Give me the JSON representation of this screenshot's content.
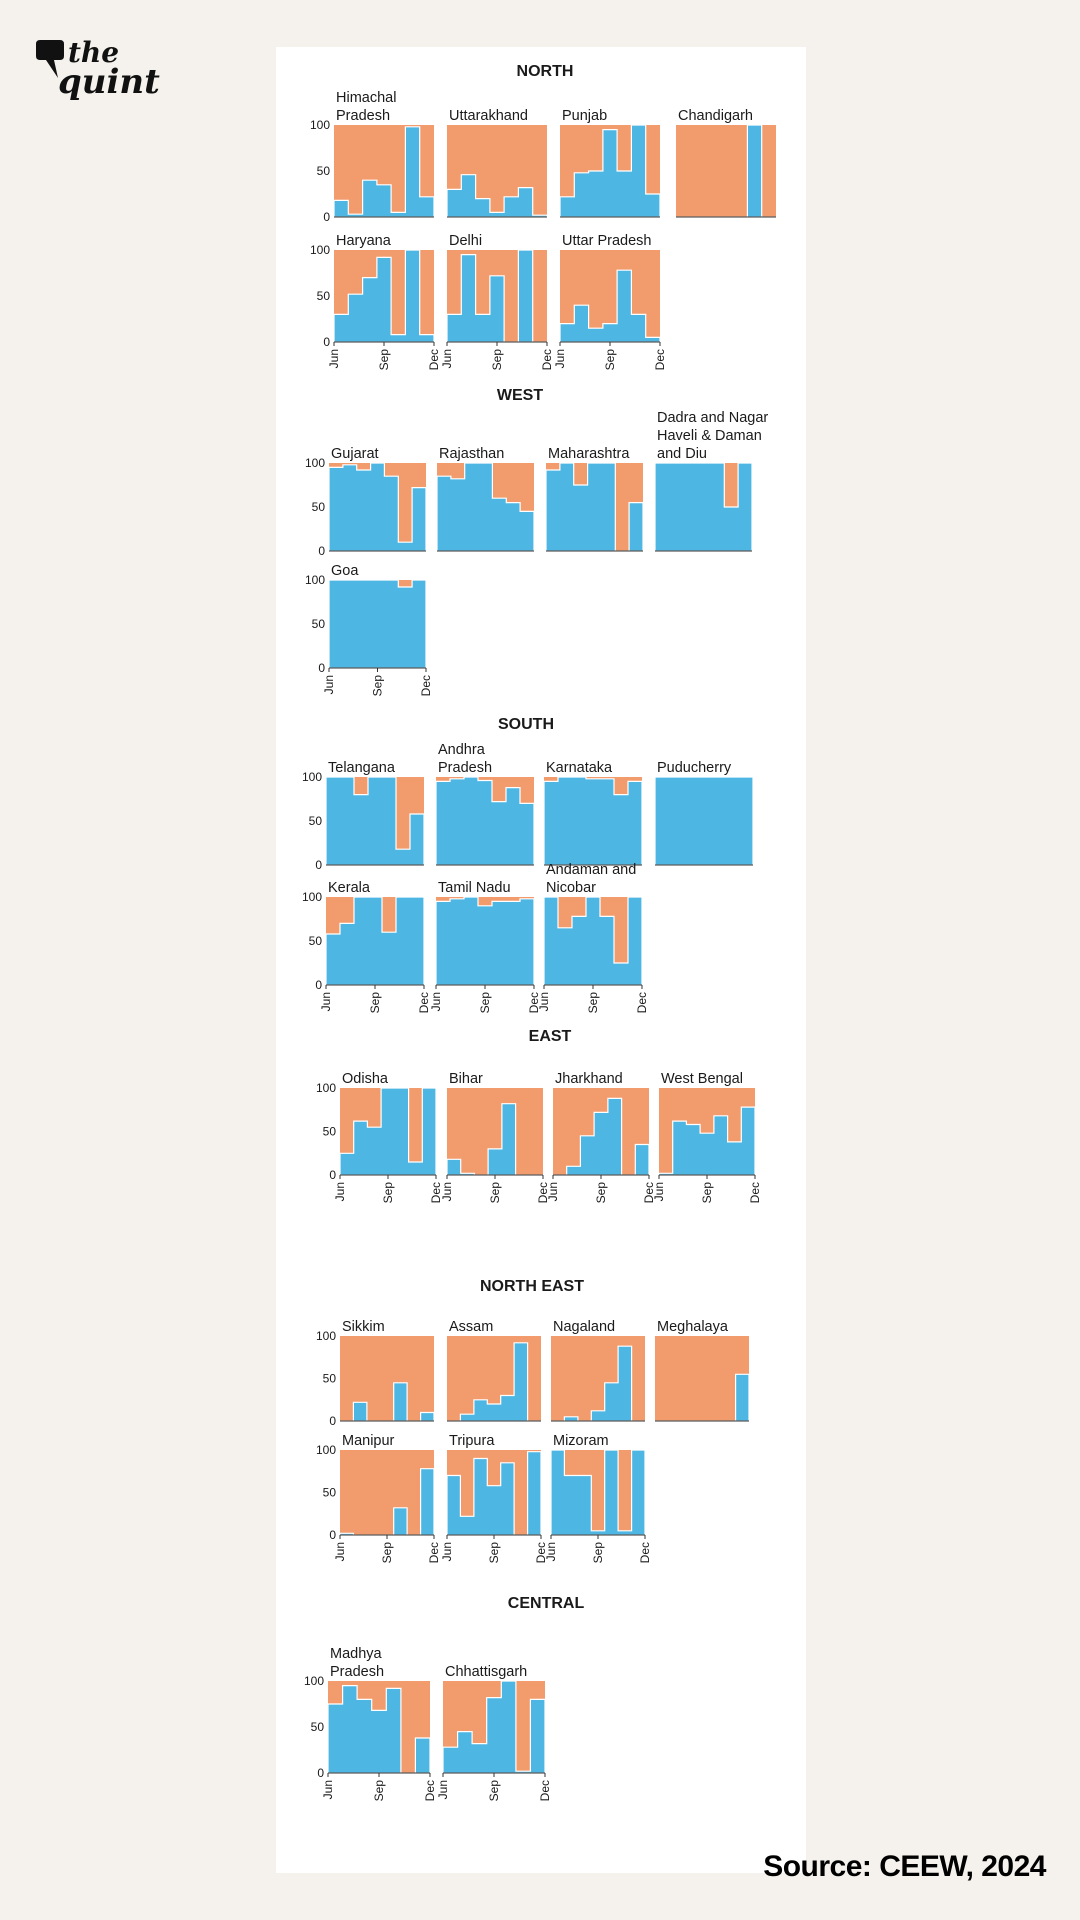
{
  "colors": {
    "blue": "#4db6e2",
    "orange": "#f29c6e",
    "axis": "#333333"
  },
  "logo": {
    "the": "the",
    "quint": "quint",
    "icon": "speech-bubble-icon"
  },
  "source": "Source: CEEW, 2024",
  "chart_data": {
    "type": "area",
    "description_units": "percent share (blue) over months Jun to Dec, remainder orange",
    "ylim": [
      0,
      100
    ],
    "yticks": [
      "100",
      "50",
      "0"
    ],
    "xticks": [
      "Jun",
      "Sep",
      "Dec"
    ],
    "series_names": [
      "blue share",
      "orange share"
    ],
    "regions": [
      {
        "name": "NORTH",
        "states": [
          {
            "name": "Himachal Pradesh",
            "values": [
              18,
              3,
              40,
              35,
              5,
              98,
              22
            ]
          },
          {
            "name": "Uttarakhand",
            "values": [
              30,
              46,
              20,
              5,
              22,
              32,
              2
            ]
          },
          {
            "name": "Punjab",
            "values": [
              22,
              48,
              50,
              95,
              50,
              100,
              25
            ]
          },
          {
            "name": "Chandigarh",
            "values": [
              0,
              0,
              0,
              0,
              0,
              100,
              0
            ]
          },
          {
            "name": "Haryana",
            "values": [
              30,
              52,
              70,
              92,
              8,
              100,
              8
            ]
          },
          {
            "name": "Delhi",
            "values": [
              30,
              95,
              30,
              72,
              0,
              100,
              0
            ]
          },
          {
            "name": "Uttar Pradesh",
            "values": [
              20,
              40,
              15,
              20,
              78,
              30,
              5
            ]
          }
        ]
      },
      {
        "name": "WEST",
        "states": [
          {
            "name": "Gujarat",
            "values": [
              95,
              98,
              92,
              100,
              85,
              10,
              72
            ]
          },
          {
            "name": "Rajasthan",
            "values": [
              85,
              82,
              100,
              100,
              60,
              55,
              45
            ]
          },
          {
            "name": "Maharashtra",
            "values": [
              92,
              100,
              75,
              100,
              100,
              0,
              55
            ]
          },
          {
            "name": "Dadra and Nagar Haveli & Daman and Diu",
            "values": [
              100,
              100,
              100,
              100,
              100,
              50,
              100
            ]
          },
          {
            "name": "Goa",
            "values": [
              100,
              100,
              100,
              100,
              100,
              92,
              100
            ]
          }
        ]
      },
      {
        "name": "SOUTH",
        "states": [
          {
            "name": "Telangana",
            "values": [
              100,
              100,
              80,
              100,
              100,
              18,
              58
            ]
          },
          {
            "name": "Andhra Pradesh",
            "values": [
              95,
              98,
              100,
              96,
              72,
              88,
              70
            ]
          },
          {
            "name": "Karnataka",
            "values": [
              95,
              100,
              100,
              98,
              98,
              80,
              95
            ]
          },
          {
            "name": "Puducherry",
            "values": [
              100,
              100,
              100,
              100,
              100,
              100,
              100
            ]
          },
          {
            "name": "Kerala",
            "values": [
              58,
              70,
              100,
              100,
              60,
              100,
              100
            ]
          },
          {
            "name": "Tamil Nadu",
            "values": [
              95,
              98,
              100,
              90,
              95,
              95,
              98
            ]
          },
          {
            "name": "Andaman and Nicobar",
            "values": [
              100,
              65,
              78,
              100,
              78,
              25,
              100
            ]
          }
        ]
      },
      {
        "name": "EAST",
        "states": [
          {
            "name": "Odisha",
            "values": [
              25,
              62,
              55,
              100,
              100,
              15,
              100
            ]
          },
          {
            "name": "Bihar",
            "values": [
              18,
              2,
              0,
              30,
              82,
              0,
              0
            ]
          },
          {
            "name": "Jharkhand",
            "values": [
              0,
              10,
              45,
              72,
              88,
              0,
              35
            ]
          },
          {
            "name": "West Bengal",
            "values": [
              2,
              62,
              58,
              48,
              68,
              38,
              78
            ]
          }
        ]
      },
      {
        "name": "NORTH EAST",
        "states": [
          {
            "name": "Sikkim",
            "values": [
              0,
              22,
              0,
              0,
              45,
              0,
              10
            ]
          },
          {
            "name": "Assam",
            "values": [
              0,
              8,
              25,
              20,
              30,
              92,
              0
            ]
          },
          {
            "name": "Nagaland",
            "values": [
              0,
              5,
              0,
              12,
              45,
              88,
              0
            ]
          },
          {
            "name": "Meghalaya",
            "values": [
              0,
              0,
              0,
              0,
              0,
              0,
              55
            ]
          },
          {
            "name": "Manipur",
            "values": [
              2,
              0,
              0,
              0,
              32,
              0,
              78
            ]
          },
          {
            "name": "Tripura",
            "values": [
              70,
              22,
              90,
              58,
              85,
              0,
              98
            ]
          },
          {
            "name": "Mizoram",
            "values": [
              100,
              70,
              70,
              5,
              100,
              5,
              100
            ]
          }
        ]
      },
      {
        "name": "CENTRAL",
        "states": [
          {
            "name": "Madhya Pradesh",
            "values": [
              75,
              95,
              80,
              68,
              92,
              0,
              38
            ]
          },
          {
            "name": "Chhattisgarh",
            "values": [
              28,
              45,
              32,
              82,
              100,
              2,
              80
            ]
          }
        ]
      }
    ]
  }
}
